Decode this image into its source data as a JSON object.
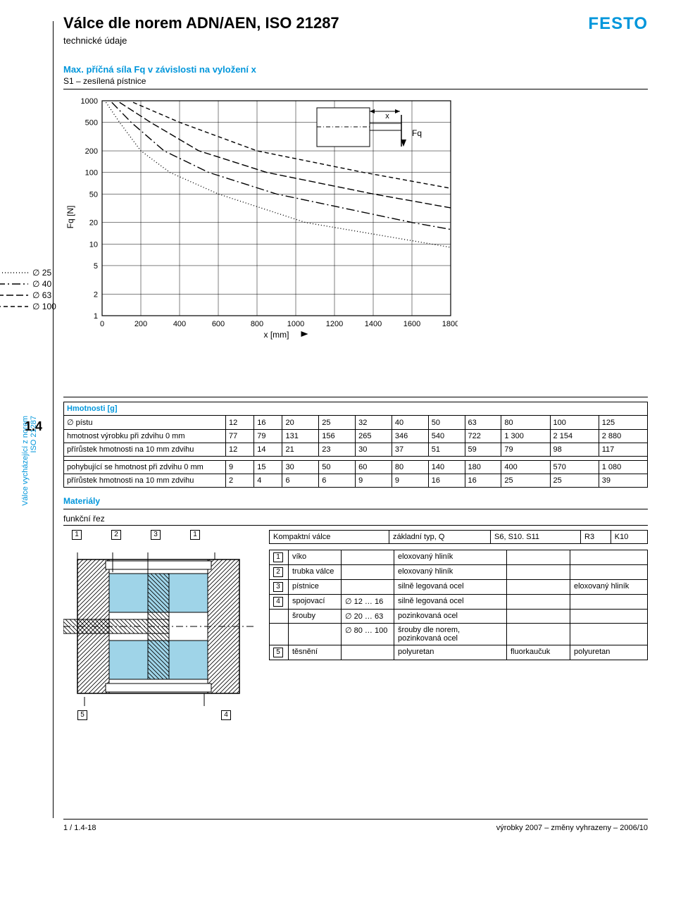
{
  "header": {
    "title": "Válce dle norem ADN/AEN, ISO 21287",
    "subtitle": "technické údaje",
    "logo": "FESTO"
  },
  "sideTab": {
    "line1": "Válce vycházející z norem",
    "line2": "ISO 21287",
    "number": "1.4"
  },
  "chart": {
    "title": "Max. příčná síla Fq v závislosti na vyložení x",
    "subtitle": "S1 – zesílená pístnice",
    "yLabel": "Fq [N]",
    "xLabel": "x [mm]",
    "yTicks": [
      1000,
      500,
      200,
      100,
      50,
      20,
      10,
      5,
      2,
      1
    ],
    "xTicks": [
      0,
      200,
      400,
      600,
      800,
      1000,
      1200,
      1400,
      1600,
      1800
    ],
    "xMin": 0,
    "xMax": 1800,
    "yMin": 1,
    "yMax": 1000,
    "gridColor": "#000000",
    "lineColor": "#000000",
    "series": [
      {
        "label": "∅ 25",
        "dash": "1 3",
        "pts": [
          [
            20,
            950
          ],
          [
            90,
            500
          ],
          [
            200,
            200
          ],
          [
            350,
            100
          ],
          [
            600,
            50
          ],
          [
            1050,
            20
          ],
          [
            1800,
            9
          ]
        ]
      },
      {
        "label": "∅ 40",
        "dash": "12 4 2 4",
        "pts": [
          [
            50,
            950
          ],
          [
            150,
            500
          ],
          [
            320,
            200
          ],
          [
            550,
            100
          ],
          [
            900,
            50
          ],
          [
            1600,
            20
          ],
          [
            1800,
            16
          ]
        ]
      },
      {
        "label": "∅ 63",
        "dash": "10 4",
        "pts": [
          [
            90,
            950
          ],
          [
            250,
            500
          ],
          [
            500,
            200
          ],
          [
            850,
            100
          ],
          [
            1400,
            50
          ],
          [
            1800,
            32
          ]
        ]
      },
      {
        "label": "∅ 100",
        "dash": "6 4",
        "pts": [
          [
            160,
            950
          ],
          [
            400,
            500
          ],
          [
            800,
            200
          ],
          [
            1350,
            100
          ],
          [
            1800,
            60
          ]
        ]
      }
    ],
    "inset": {
      "xLabel": "x",
      "fqLabel": "Fq"
    }
  },
  "massTable": {
    "title": "Hmotnosti [g]",
    "headerRow": [
      "∅ pístu",
      "12",
      "16",
      "20",
      "25",
      "32",
      "40",
      "50",
      "63",
      "80",
      "100",
      "125"
    ],
    "rows1": [
      [
        "hmotnost výrobku při zdvihu 0 mm",
        "77",
        "79",
        "131",
        "156",
        "265",
        "346",
        "540",
        "722",
        "1 300",
        "2 154",
        "2 880"
      ],
      [
        "přírůstek hmotnosti na 10 mm zdvihu",
        "12",
        "14",
        "21",
        "23",
        "30",
        "37",
        "51",
        "59",
        "79",
        "98",
        "117"
      ]
    ],
    "rows2": [
      [
        "pohybující se hmotnost při zdvihu 0 mm",
        "9",
        "15",
        "30",
        "50",
        "60",
        "80",
        "140",
        "180",
        "400",
        "570",
        "1 080"
      ],
      [
        "přírůstek hmotnosti na 10 mm zdvihu",
        "2",
        "4",
        "6",
        "6",
        "9",
        "9",
        "16",
        "16",
        "25",
        "25",
        "39"
      ]
    ]
  },
  "materials": {
    "title": "Materiály",
    "subtitle": "funkční řez",
    "table1Header": [
      "Kompaktní válce",
      "základní typ, Q",
      "S6, S10. S11",
      "R3",
      "K10"
    ],
    "table2": [
      {
        "n": "1",
        "name": "víko",
        "c2": "",
        "v": "eloxovaný hliník",
        "v2": "",
        "v3": ""
      },
      {
        "n": "2",
        "name": "trubka válce",
        "c2": "",
        "v": "eloxovaný hliník",
        "v2": "",
        "v3": ""
      },
      {
        "n": "3",
        "name": "pístnice",
        "c2": "",
        "v": "silně legovaná ocel",
        "v2": "",
        "v3": "eloxovaný hliník"
      },
      {
        "n": "4",
        "name": "spojovací",
        "c2": "∅ 12 … 16",
        "v": "silně legovaná ocel",
        "v2": "",
        "v3": ""
      },
      {
        "n": "",
        "name": "šrouby",
        "c2": "∅ 20 … 63",
        "v": "pozinkovaná ocel",
        "v2": "",
        "v3": ""
      },
      {
        "n": "",
        "name": "",
        "c2": "∅ 80 … 100",
        "v": "šrouby dle norem, pozinkovaná ocel",
        "v2": "",
        "v3": ""
      },
      {
        "n": "5",
        "name": "těsnění",
        "c2": "",
        "v": "polyuretan",
        "v2": "fluorkaučuk",
        "v3": "polyuretan"
      }
    ],
    "calloutsTop": [
      "1",
      "2",
      "3",
      "1"
    ],
    "calloutsBottom": [
      "5",
      "4"
    ]
  },
  "footer": {
    "left": "1 / 1.4-18",
    "right": "výrobky 2007 – změny vyhrazeny – 2006/10"
  },
  "colors": {
    "accent": "#0096db",
    "cutFill": "#9fd4e8",
    "hatch": "#000000"
  }
}
